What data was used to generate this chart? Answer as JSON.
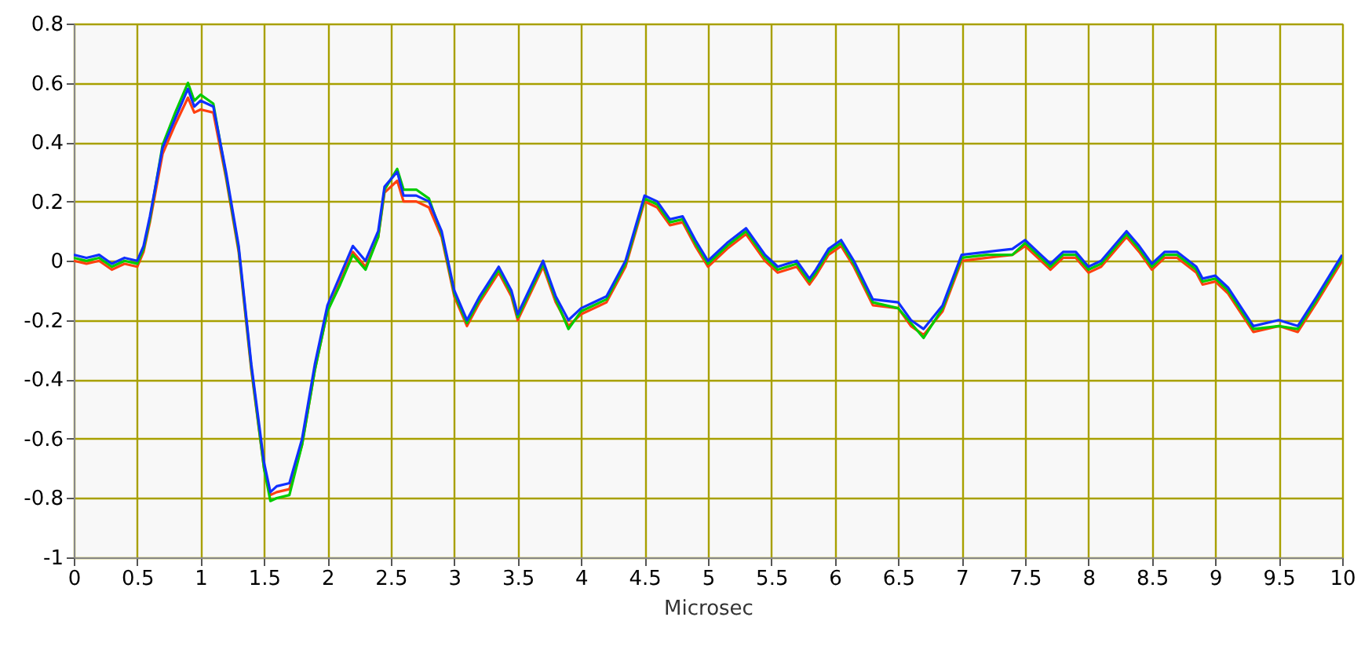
{
  "chart_data": {
    "type": "line",
    "xlabel": "Microsec",
    "xlim": [
      0,
      10
    ],
    "xticks": [
      0,
      0.5,
      1,
      1.5,
      2,
      2.5,
      3,
      3.5,
      4,
      4.5,
      5,
      5.5,
      6,
      6.5,
      7,
      7.5,
      8,
      8.5,
      9,
      9.5,
      10
    ],
    "ylim": [
      -1,
      0.8
    ],
    "yticks": [
      -1,
      -0.8,
      -0.6,
      -0.4,
      -0.2,
      0,
      0.2,
      0.4,
      0.6,
      0.8
    ],
    "grid": true,
    "marker": "none",
    "line_style": "solid",
    "x": [
      0,
      0.1,
      0.2,
      0.3,
      0.4,
      0.5,
      0.55,
      0.6,
      0.7,
      0.8,
      0.9,
      0.95,
      1.0,
      1.1,
      1.2,
      1.3,
      1.4,
      1.5,
      1.55,
      1.6,
      1.7,
      1.8,
      1.9,
      2.0,
      2.1,
      2.2,
      2.3,
      2.4,
      2.45,
      2.55,
      2.6,
      2.7,
      2.8,
      2.9,
      3.0,
      3.1,
      3.2,
      3.35,
      3.45,
      3.5,
      3.7,
      3.8,
      3.9,
      4.0,
      4.2,
      4.35,
      4.5,
      4.6,
      4.7,
      4.8,
      4.9,
      5.0,
      5.15,
      5.3,
      5.45,
      5.55,
      5.7,
      5.8,
      5.85,
      5.95,
      6.05,
      6.15,
      6.3,
      6.5,
      6.6,
      6.7,
      6.85,
      7.0,
      7.2,
      7.4,
      7.5,
      7.6,
      7.7,
      7.8,
      7.9,
      8.0,
      8.1,
      8.3,
      8.4,
      8.5,
      8.6,
      8.7,
      8.85,
      8.9,
      9.0,
      9.1,
      9.3,
      9.5,
      9.65,
      9.8,
      10
    ],
    "series": [
      {
        "color": "#ff4010",
        "values": [
          0.0,
          -0.01,
          0.0,
          -0.03,
          -0.01,
          -0.02,
          0.03,
          0.13,
          0.36,
          0.46,
          0.55,
          0.5,
          0.51,
          0.5,
          0.28,
          0.03,
          -0.37,
          -0.7,
          -0.79,
          -0.78,
          -0.77,
          -0.62,
          -0.37,
          -0.17,
          -0.07,
          0.03,
          -0.02,
          0.08,
          0.23,
          0.27,
          0.2,
          0.2,
          0.18,
          0.08,
          -0.12,
          -0.22,
          -0.14,
          -0.04,
          -0.12,
          -0.2,
          -0.02,
          -0.14,
          -0.22,
          -0.18,
          -0.14,
          -0.02,
          0.2,
          0.18,
          0.12,
          0.13,
          0.05,
          -0.02,
          0.04,
          0.09,
          0.0,
          -0.04,
          -0.02,
          -0.08,
          -0.05,
          0.02,
          0.05,
          -0.02,
          -0.15,
          -0.16,
          -0.22,
          -0.25,
          -0.17,
          0.0,
          0.01,
          0.02,
          0.05,
          0.01,
          -0.03,
          0.01,
          0.01,
          -0.04,
          -0.02,
          0.08,
          0.03,
          -0.03,
          0.01,
          0.01,
          -0.04,
          -0.08,
          -0.07,
          -0.11,
          -0.24,
          -0.22,
          -0.24,
          -0.14,
          0.0
        ]
      },
      {
        "color": "#00cc00",
        "values": [
          0.01,
          0.0,
          0.01,
          -0.02,
          0.0,
          -0.01,
          0.04,
          0.14,
          0.39,
          0.5,
          0.6,
          0.54,
          0.56,
          0.53,
          0.29,
          0.04,
          -0.36,
          -0.7,
          -0.81,
          -0.8,
          -0.79,
          -0.62,
          -0.37,
          -0.17,
          -0.08,
          0.02,
          -0.03,
          0.08,
          0.24,
          0.31,
          0.24,
          0.24,
          0.21,
          0.09,
          -0.11,
          -0.21,
          -0.13,
          -0.03,
          -0.11,
          -0.19,
          -0.01,
          -0.13,
          -0.23,
          -0.17,
          -0.13,
          -0.01,
          0.21,
          0.19,
          0.13,
          0.14,
          0.06,
          -0.01,
          0.05,
          0.1,
          0.01,
          -0.03,
          -0.01,
          -0.07,
          -0.04,
          0.03,
          0.06,
          -0.01,
          -0.14,
          -0.16,
          -0.21,
          -0.26,
          -0.16,
          0.01,
          0.02,
          0.02,
          0.06,
          0.02,
          -0.02,
          0.02,
          0.02,
          -0.03,
          -0.01,
          0.09,
          0.04,
          -0.02,
          0.02,
          0.02,
          -0.03,
          -0.07,
          -0.06,
          -0.1,
          -0.23,
          -0.22,
          -0.23,
          -0.13,
          0.01
        ]
      },
      {
        "color": "#1030ff",
        "values": [
          0.02,
          0.01,
          0.02,
          -0.01,
          0.01,
          0.0,
          0.05,
          0.15,
          0.38,
          0.48,
          0.58,
          0.52,
          0.54,
          0.52,
          0.3,
          0.05,
          -0.35,
          -0.68,
          -0.78,
          -0.76,
          -0.75,
          -0.6,
          -0.35,
          -0.15,
          -0.05,
          0.05,
          0.0,
          0.1,
          0.25,
          0.3,
          0.22,
          0.22,
          0.2,
          0.1,
          -0.1,
          -0.2,
          -0.12,
          -0.02,
          -0.1,
          -0.18,
          0.0,
          -0.12,
          -0.2,
          -0.16,
          -0.12,
          0.0,
          0.22,
          0.2,
          0.14,
          0.15,
          0.07,
          0.0,
          0.06,
          0.11,
          0.02,
          -0.02,
          0.0,
          -0.06,
          -0.03,
          0.04,
          0.07,
          0.0,
          -0.13,
          -0.14,
          -0.2,
          -0.23,
          -0.15,
          0.02,
          0.03,
          0.04,
          0.07,
          0.03,
          -0.01,
          0.03,
          0.03,
          -0.02,
          0.0,
          0.1,
          0.05,
          -0.01,
          0.03,
          0.03,
          -0.02,
          -0.06,
          -0.05,
          -0.09,
          -0.22,
          -0.2,
          -0.22,
          -0.12,
          0.02
        ]
      }
    ]
  }
}
